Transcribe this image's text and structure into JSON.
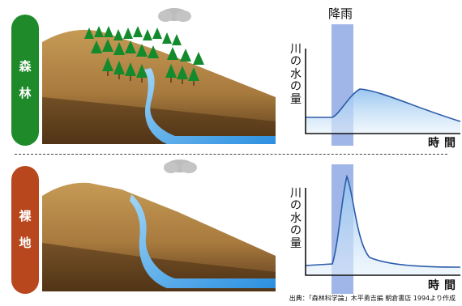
{
  "rows": {
    "forest": {
      "label_chars": [
        "森",
        "林"
      ]
    },
    "bare": {
      "label_chars": [
        "裸",
        "地"
      ]
    }
  },
  "graph": {
    "rain_label": "降雨",
    "y_label_chars": [
      "川",
      "の",
      "水",
      "の",
      "量"
    ],
    "x_label": "時間"
  },
  "source": "出典：「森林科学論」木平勇吉編 朝倉書店 1994より作成",
  "colors": {
    "forest_badge": "#1e8a2a",
    "bare_badge": "#b8471e",
    "rain_band": "#6f8fdc",
    "water": "#49a8e8"
  }
}
